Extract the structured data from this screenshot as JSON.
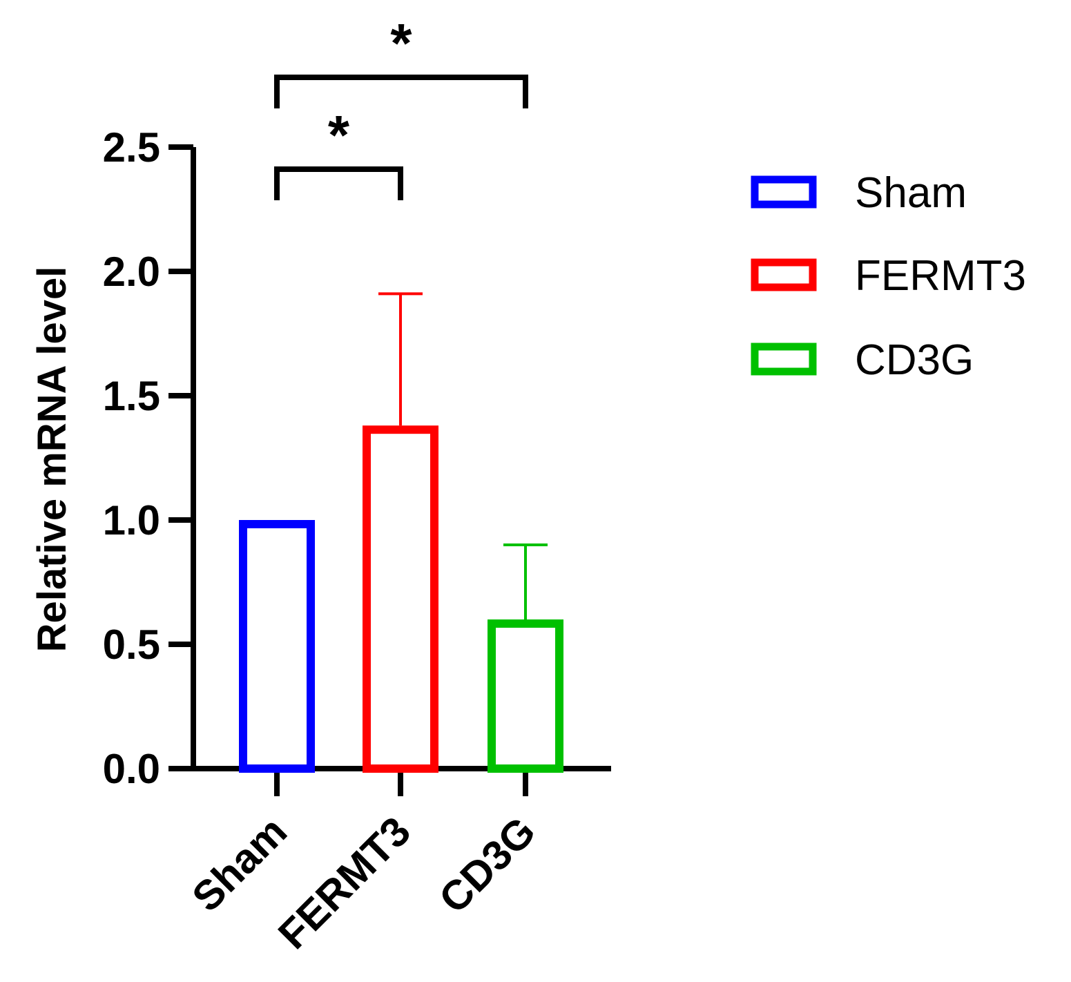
{
  "chart_data": {
    "type": "bar",
    "title": "",
    "xlabel": "",
    "ylabel": "Relative mRNA level",
    "ylim": [
      0,
      2.5
    ],
    "yticks": [
      "0.0",
      "0.5",
      "1.0",
      "1.5",
      "2.0",
      "2.5"
    ],
    "categories": [
      "Sham",
      "FERMT3",
      "CD3G"
    ],
    "values": [
      1.0,
      1.38,
      0.6
    ],
    "error_upper": [
      0.0,
      0.53,
      0.3
    ],
    "colors": [
      "#0000ff",
      "#ff0000",
      "#00c000"
    ],
    "legend": {
      "position": "top-right",
      "entries": [
        "Sham",
        "FERMT3",
        "CD3G"
      ]
    },
    "significance": [
      {
        "from": "Sham",
        "to": "FERMT3",
        "label": "*"
      },
      {
        "from": "Sham",
        "to": "CD3G",
        "label": "*"
      }
    ]
  }
}
